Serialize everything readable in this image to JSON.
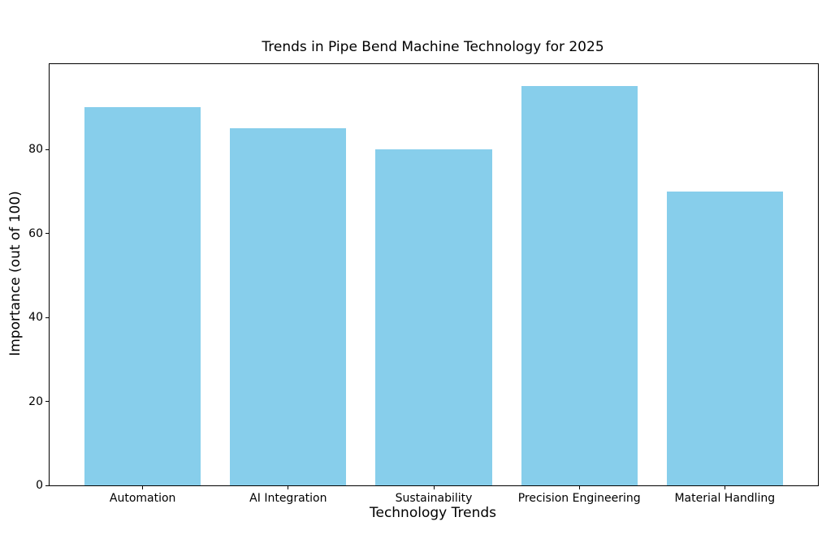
{
  "figure": {
    "background": "#ffffff"
  },
  "chart_data": {
    "type": "bar",
    "title": "Trends in Pipe Bend Machine Technology for 2025",
    "xlabel": "Technology Trends",
    "ylabel": "Importance (out of 100)",
    "categories": [
      "Automation",
      "AI Integration",
      "Sustainability",
      "Precision Engineering",
      "Material Handling"
    ],
    "values": [
      90,
      85,
      80,
      95,
      70
    ],
    "bar_color": "#87CEEB",
    "bar_width": 0.8,
    "xlim": [
      -0.64,
      4.64
    ],
    "ylim": [
      0,
      100.3
    ],
    "yticks": [
      0,
      20,
      40,
      60,
      80
    ],
    "grid": false,
    "legend": null,
    "axis_color": "#000000",
    "text_color": "#000000"
  }
}
